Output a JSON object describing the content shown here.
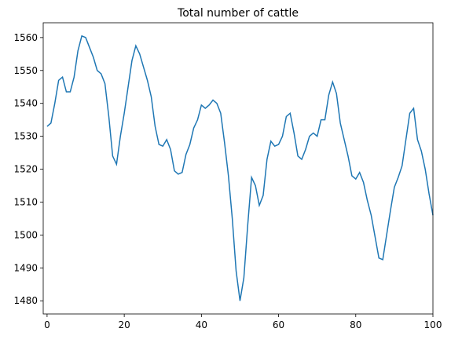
{
  "chart_data": {
    "type": "line",
    "title": "Total number of cattle",
    "x": [
      0,
      1,
      2,
      3,
      4,
      5,
      6,
      7,
      8,
      9,
      10,
      11,
      12,
      13,
      14,
      15,
      16,
      17,
      18,
      19,
      20,
      21,
      22,
      23,
      24,
      25,
      26,
      27,
      28,
      29,
      30,
      31,
      32,
      33,
      34,
      35,
      36,
      37,
      38,
      39,
      40,
      41,
      42,
      43,
      44,
      45,
      46,
      47,
      48,
      49,
      50,
      51,
      52,
      53,
      54,
      55,
      56,
      57,
      58,
      59,
      60,
      61,
      62,
      63,
      64,
      65,
      66,
      67,
      68,
      69,
      70,
      71,
      72,
      73,
      74,
      75,
      76,
      77,
      78,
      79,
      80,
      81,
      82,
      83,
      84,
      85,
      86,
      87,
      88,
      89,
      90,
      91,
      92,
      93,
      94,
      95,
      96,
      97,
      98,
      99,
      100
    ],
    "series": [
      {
        "color": "#1f77b4",
        "values": [
          1533,
          1534,
          1540,
          1547,
          1548,
          1543.5,
          1543.5,
          1548,
          1556,
          1560.5,
          1560,
          1557,
          1554,
          1550,
          1549,
          1546,
          1536,
          1524,
          1521.5,
          1530,
          1537,
          1545,
          1553,
          1557.5,
          1555,
          1551,
          1547,
          1542,
          1533,
          1527.5,
          1527,
          1529,
          1526,
          1519.5,
          1518.5,
          1519,
          1524.5,
          1527.5,
          1532.5,
          1535,
          1539.5,
          1538.5,
          1539.5,
          1541,
          1540,
          1537,
          1528,
          1518,
          1505,
          1489,
          1480,
          1487,
          1503,
          1517.5,
          1515,
          1509,
          1512,
          1523,
          1528.5,
          1527,
          1527.5,
          1530,
          1536,
          1537,
          1531,
          1524,
          1523,
          1526,
          1530,
          1531,
          1530,
          1535,
          1535,
          1542.5,
          1546.5,
          1543,
          1534,
          1529,
          1524,
          1518,
          1517,
          1519,
          1516,
          1510.5,
          1506,
          1499.5,
          1493,
          1492.5,
          1500,
          1507.5,
          1514.5,
          1517.5,
          1521,
          1529,
          1537,
          1538.5,
          1529,
          1525.5,
          1520,
          1512.5,
          1506
        ]
      }
    ],
    "xlim": [
      -1,
      100
    ],
    "xticks": [
      0,
      20,
      40,
      60,
      80,
      100
    ],
    "ylim": [
      1476,
      1564.5
    ],
    "yticks": [
      1480,
      1490,
      1500,
      1510,
      1520,
      1530,
      1540,
      1550,
      1560
    ]
  }
}
